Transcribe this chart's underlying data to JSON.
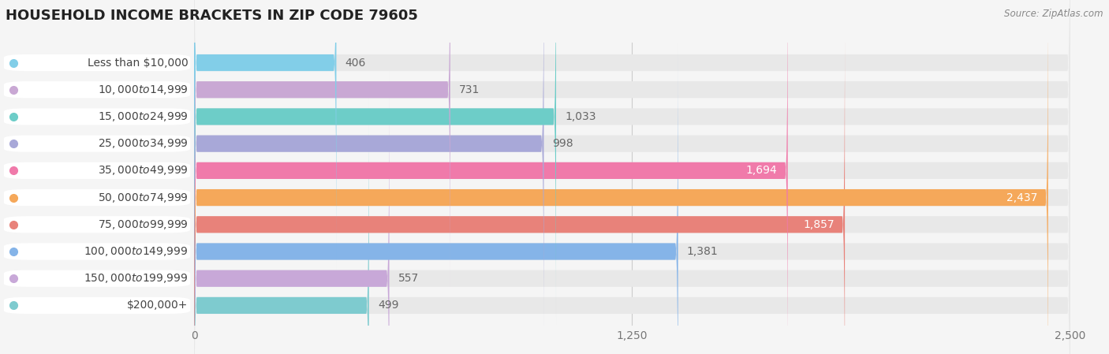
{
  "title": "HOUSEHOLD INCOME BRACKETS IN ZIP CODE 79605",
  "source": "Source: ZipAtlas.com",
  "categories": [
    "Less than $10,000",
    "$10,000 to $14,999",
    "$15,000 to $24,999",
    "$25,000 to $34,999",
    "$35,000 to $49,999",
    "$50,000 to $74,999",
    "$75,000 to $99,999",
    "$100,000 to $149,999",
    "$150,000 to $199,999",
    "$200,000+"
  ],
  "values": [
    406,
    731,
    1033,
    998,
    1694,
    2437,
    1857,
    1381,
    557,
    499
  ],
  "bar_colors": [
    "#82cee8",
    "#c9a8d4",
    "#6dcdc8",
    "#a8a8d8",
    "#f07aaa",
    "#f5a85a",
    "#e8827a",
    "#85b4e8",
    "#c8a8d8",
    "#7ecbcf"
  ],
  "dot_colors": [
    "#82cee8",
    "#c9a8d4",
    "#6dcdc8",
    "#a8a8d8",
    "#f07aaa",
    "#f5a85a",
    "#e8827a",
    "#85b4e8",
    "#c8a8d8",
    "#7ecbcf"
  ],
  "xlim_max": 2500,
  "xticks": [
    0,
    1250,
    2500
  ],
  "background_color": "#f5f5f5",
  "bar_bg_color": "#e8e8e8",
  "title_fontsize": 13,
  "tick_fontsize": 10,
  "label_fontsize": 10,
  "value_fontsize": 10,
  "value_colors": [
    "#666666",
    "#666666",
    "#666666",
    "#666666",
    "#ffffff",
    "#ffffff",
    "#ffffff",
    "#666666",
    "#666666",
    "#666666"
  ]
}
